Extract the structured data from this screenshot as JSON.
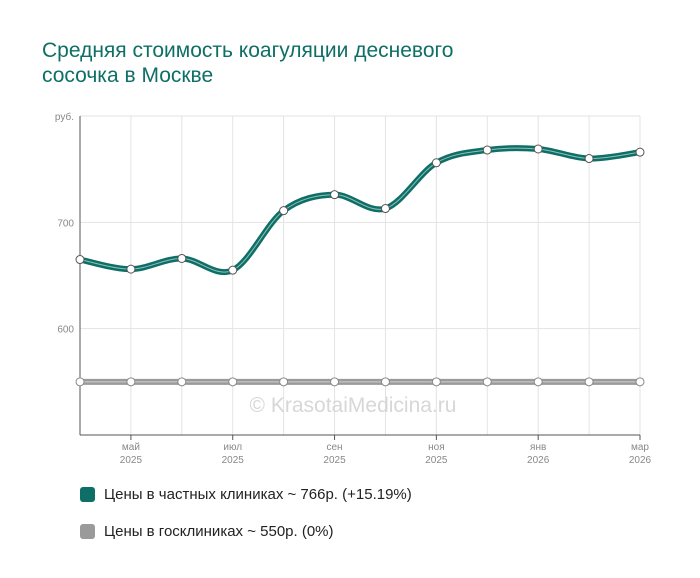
{
  "title_lines": [
    "Средняя стоимость коагуляции десневого",
    "сосочка в Москве"
  ],
  "watermark": "© KrasotaiMedicina.ru",
  "legend": [
    {
      "label": "Цены в частных клиниках ~ 766р. (+15.19%)",
      "color": "#0e6f66"
    },
    {
      "label": "Цены в госклиниках ~ 550р. (0%)",
      "color": "#9a9a9a"
    }
  ],
  "chart_data": {
    "type": "line",
    "title": "Средняя стоимость коагуляции десневого сосочка в Москве",
    "ylabel": "руб.",
    "ylim": [
      500,
      800
    ],
    "yticks": [
      600,
      700
    ],
    "x_tick_labels": [
      {
        "index": 1,
        "month": "май",
        "year": "2025"
      },
      {
        "index": 3,
        "month": "июл",
        "year": "2025"
      },
      {
        "index": 5,
        "month": "сен",
        "year": "2025"
      },
      {
        "index": 7,
        "month": "ноя",
        "year": "2025"
      },
      {
        "index": 9,
        "month": "янв",
        "year": "2026"
      },
      {
        "index": 11,
        "month": "мар",
        "year": "2026"
      }
    ],
    "series": [
      {
        "name": "Цены в частных клиниках",
        "color": "#0e6f66",
        "values": [
          665,
          656,
          666,
          655,
          711,
          726,
          713,
          756,
          768,
          769,
          760,
          766
        ]
      },
      {
        "name": "Цены в госклиниках",
        "color": "#9a9a9a",
        "values": [
          550,
          550,
          550,
          550,
          550,
          550,
          550,
          550,
          550,
          550,
          550,
          550
        ]
      }
    ]
  }
}
